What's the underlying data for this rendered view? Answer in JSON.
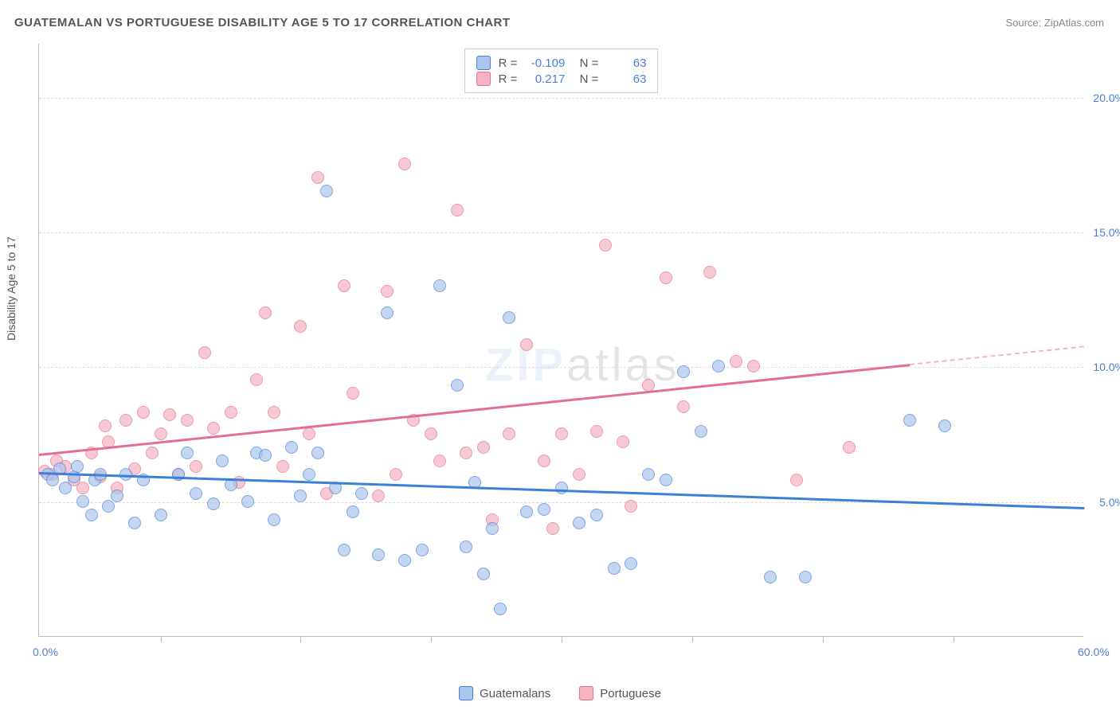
{
  "header": {
    "title": "GUATEMALAN VS PORTUGUESE DISABILITY AGE 5 TO 17 CORRELATION CHART",
    "source": "Source: ZipAtlas.com"
  },
  "chart": {
    "type": "scatter",
    "ylabel": "Disability Age 5 to 17",
    "xlim": [
      0,
      60
    ],
    "ylim": [
      0,
      22
    ],
    "xticks_labeled": [
      {
        "v": 0,
        "l": "0.0%"
      },
      {
        "v": 60,
        "l": "60.0%"
      }
    ],
    "xticks_minor": [
      7,
      15,
      22.5,
      30,
      37.5,
      45,
      52.5
    ],
    "yticks": [
      {
        "v": 5,
        "l": "5.0%"
      },
      {
        "v": 10,
        "l": "10.0%"
      },
      {
        "v": 15,
        "l": "15.0%"
      },
      {
        "v": 20,
        "l": "20.0%"
      }
    ],
    "background_color": "#ffffff",
    "grid_color": "#dddddd",
    "series": {
      "guatemalans": {
        "label": "Guatemalans",
        "fill": "#abc6ed",
        "stroke": "#4a7fd8",
        "opacity": 0.7,
        "marker_radius": 8,
        "r": "-0.109",
        "n": "63",
        "trend": {
          "x1": 0,
          "y1": 6.1,
          "x2": 60,
          "y2": 4.8,
          "color": "#3b7fd8",
          "width": 2.5,
          "dash_after_x": null
        },
        "points": [
          [
            0.5,
            6.0
          ],
          [
            0.8,
            5.8
          ],
          [
            1.2,
            6.2
          ],
          [
            1.5,
            5.5
          ],
          [
            2.0,
            5.9
          ],
          [
            2.2,
            6.3
          ],
          [
            2.5,
            5.0
          ],
          [
            3.0,
            4.5
          ],
          [
            3.2,
            5.8
          ],
          [
            3.5,
            6.0
          ],
          [
            4.0,
            4.8
          ],
          [
            4.5,
            5.2
          ],
          [
            5.0,
            6.0
          ],
          [
            5.5,
            4.2
          ],
          [
            6.0,
            5.8
          ],
          [
            7.0,
            4.5
          ],
          [
            8.0,
            6.0
          ],
          [
            8.5,
            6.8
          ],
          [
            9.0,
            5.3
          ],
          [
            10.0,
            4.9
          ],
          [
            10.5,
            6.5
          ],
          [
            11.0,
            5.6
          ],
          [
            12.0,
            5.0
          ],
          [
            12.5,
            6.8
          ],
          [
            13.0,
            6.7
          ],
          [
            13.5,
            4.3
          ],
          [
            14.5,
            7.0
          ],
          [
            15.0,
            5.2
          ],
          [
            15.5,
            6.0
          ],
          [
            16.0,
            6.8
          ],
          [
            16.5,
            16.5
          ],
          [
            17.0,
            5.5
          ],
          [
            17.5,
            3.2
          ],
          [
            18.0,
            4.6
          ],
          [
            18.5,
            5.3
          ],
          [
            19.5,
            3.0
          ],
          [
            20.0,
            12.0
          ],
          [
            21.0,
            2.8
          ],
          [
            22.0,
            3.2
          ],
          [
            23.0,
            13.0
          ],
          [
            24.0,
            9.3
          ],
          [
            24.5,
            3.3
          ],
          [
            25.0,
            5.7
          ],
          [
            25.5,
            2.3
          ],
          [
            26.0,
            4.0
          ],
          [
            26.5,
            1.0
          ],
          [
            27.0,
            11.8
          ],
          [
            28.0,
            4.6
          ],
          [
            29.0,
            4.7
          ],
          [
            30.0,
            5.5
          ],
          [
            31.0,
            4.2
          ],
          [
            32.0,
            4.5
          ],
          [
            33.0,
            2.5
          ],
          [
            34.0,
            2.7
          ],
          [
            35.0,
            6.0
          ],
          [
            36.0,
            5.8
          ],
          [
            37.0,
            9.8
          ],
          [
            38.0,
            7.6
          ],
          [
            39.0,
            10.0
          ],
          [
            42.0,
            2.2
          ],
          [
            44.0,
            2.2
          ],
          [
            50.0,
            8.0
          ],
          [
            52.0,
            7.8
          ]
        ]
      },
      "portuguese": {
        "label": "Portuguese",
        "fill": "#f5b3c3",
        "stroke": "#e36f8f",
        "opacity": 0.7,
        "marker_radius": 8,
        "r": "0.217",
        "n": "63",
        "trend": {
          "x1": 0,
          "y1": 6.8,
          "x2": 60,
          "y2": 10.8,
          "color": "#e36f8f",
          "width": 2.5,
          "dash_after_x": 50
        },
        "points": [
          [
            0.8,
            6.0
          ],
          [
            1.5,
            6.3
          ],
          [
            2.0,
            5.8
          ],
          [
            2.5,
            5.5
          ],
          [
            3.0,
            6.8
          ],
          [
            3.5,
            5.9
          ],
          [
            4.0,
            7.2
          ],
          [
            4.5,
            5.5
          ],
          [
            5.0,
            8.0
          ],
          [
            5.5,
            6.2
          ],
          [
            6.0,
            8.3
          ],
          [
            7.0,
            7.5
          ],
          [
            7.5,
            8.2
          ],
          [
            8.0,
            6.0
          ],
          [
            8.5,
            8.0
          ],
          [
            9.5,
            10.5
          ],
          [
            10.0,
            7.7
          ],
          [
            11.0,
            8.3
          ],
          [
            11.5,
            5.7
          ],
          [
            12.5,
            9.5
          ],
          [
            13.0,
            12.0
          ],
          [
            14.0,
            6.3
          ],
          [
            15.0,
            11.5
          ],
          [
            15.5,
            7.5
          ],
          [
            16.0,
            17.0
          ],
          [
            16.5,
            5.3
          ],
          [
            17.5,
            13.0
          ],
          [
            18.0,
            9.0
          ],
          [
            19.5,
            5.2
          ],
          [
            20.0,
            12.8
          ],
          [
            20.5,
            6.0
          ],
          [
            21.0,
            17.5
          ],
          [
            21.5,
            8.0
          ],
          [
            22.5,
            7.5
          ],
          [
            23.0,
            6.5
          ],
          [
            24.0,
            15.8
          ],
          [
            25.5,
            7.0
          ],
          [
            26.0,
            4.3
          ],
          [
            27.0,
            7.5
          ],
          [
            28.0,
            10.8
          ],
          [
            29.0,
            6.5
          ],
          [
            29.5,
            4.0
          ],
          [
            30.0,
            7.5
          ],
          [
            31.0,
            6.0
          ],
          [
            32.0,
            7.6
          ],
          [
            32.5,
            14.5
          ],
          [
            33.5,
            7.2
          ],
          [
            34.0,
            4.8
          ],
          [
            35.0,
            9.3
          ],
          [
            36.0,
            13.3
          ],
          [
            37.0,
            8.5
          ],
          [
            38.5,
            13.5
          ],
          [
            40.0,
            10.2
          ],
          [
            41.0,
            10.0
          ],
          [
            43.5,
            5.8
          ],
          [
            46.5,
            7.0
          ],
          [
            0.3,
            6.1
          ],
          [
            1.0,
            6.5
          ],
          [
            3.8,
            7.8
          ],
          [
            6.5,
            6.8
          ],
          [
            9.0,
            6.3
          ],
          [
            13.5,
            8.3
          ],
          [
            24.5,
            6.8
          ]
        ]
      }
    }
  },
  "watermark": {
    "a": "ZIP",
    "b": "atlas"
  }
}
